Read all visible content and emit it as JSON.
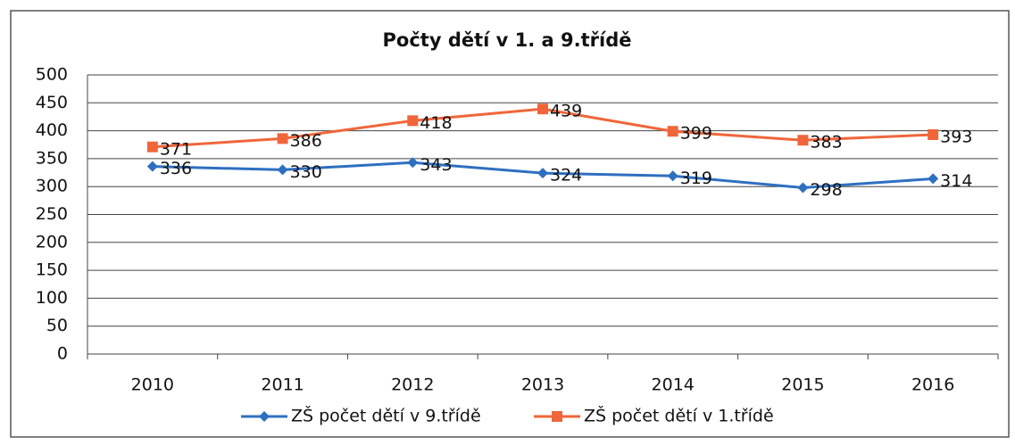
{
  "chart_data": {
    "type": "line",
    "title": "Počty dětí v 1. a 9.třídě",
    "categories": [
      "2010",
      "2011",
      "2012",
      "2013",
      "2014",
      "2015",
      "2016"
    ],
    "series": [
      {
        "name": "ZŠ počet dětí v 9.třídě",
        "color": "#2e6fc0",
        "marker": "diamond",
        "values": [
          336,
          330,
          343,
          324,
          319,
          298,
          314
        ]
      },
      {
        "name": "ZŠ počet dětí v 1.třídě",
        "color": "#f0663a",
        "marker": "square",
        "values": [
          371,
          386,
          418,
          439,
          399,
          383,
          393
        ]
      }
    ],
    "ylim": [
      0,
      500
    ],
    "yticks": [
      0,
      50,
      100,
      150,
      200,
      250,
      300,
      350,
      400,
      450,
      500
    ],
    "grid": true,
    "legend": "bottom",
    "data_labels": true
  }
}
